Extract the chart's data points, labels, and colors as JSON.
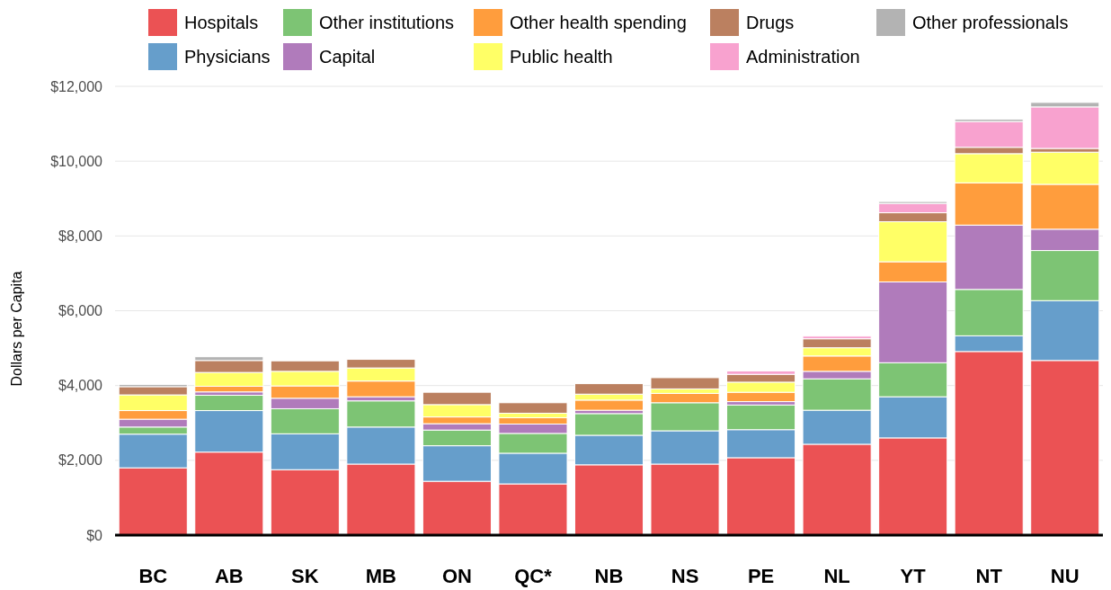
{
  "chart_data": {
    "type": "bar",
    "stacked": true,
    "ylabel": "Dollars per Capita",
    "categories": [
      "BC",
      "AB",
      "SK",
      "MB",
      "ON",
      "QC*",
      "NB",
      "NS",
      "PE",
      "NL",
      "YT",
      "NT",
      "NU"
    ],
    "series": [
      {
        "name": "Hospitals",
        "color": "#eb5254",
        "values": [
          1800,
          2220,
          1750,
          1900,
          1440,
          1370,
          1880,
          1900,
          2070,
          2430,
          2600,
          4910,
          4670
        ]
      },
      {
        "name": "Physicians",
        "color": "#669ecb",
        "values": [
          900,
          1110,
          960,
          990,
          950,
          820,
          790,
          890,
          750,
          910,
          1100,
          420,
          1600
        ]
      },
      {
        "name": "Other institutions",
        "color": "#7dc474",
        "values": [
          190,
          410,
          670,
          700,
          420,
          530,
          580,
          750,
          660,
          840,
          910,
          1240,
          1340
        ]
      },
      {
        "name": "Capital",
        "color": "#b07bbb",
        "values": [
          210,
          90,
          280,
          110,
          170,
          250,
          90,
          0,
          90,
          200,
          2160,
          1720,
          570
        ]
      },
      {
        "name": "Other health spending",
        "color": "#ff9d3d",
        "values": [
          230,
          150,
          330,
          420,
          180,
          170,
          270,
          250,
          250,
          410,
          540,
          1130,
          1200
        ]
      },
      {
        "name": "Public health",
        "color": "#ffff66",
        "values": [
          420,
          370,
          390,
          350,
          330,
          120,
          160,
          120,
          270,
          220,
          1070,
          780,
          860
        ]
      },
      {
        "name": "Drugs",
        "color": "#bb8060",
        "values": [
          220,
          320,
          280,
          230,
          330,
          280,
          280,
          300,
          210,
          240,
          240,
          170,
          100
        ]
      },
      {
        "name": "Administration",
        "color": "#f8a2cf",
        "values": [
          0,
          0,
          0,
          0,
          0,
          0,
          0,
          0,
          90,
          70,
          250,
          690,
          1110
        ]
      },
      {
        "name": "Other professionals",
        "color": "#b3b3b3",
        "values": [
          60,
          100,
          0,
          0,
          0,
          0,
          0,
          0,
          0,
          0,
          50,
          60,
          120
        ]
      }
    ],
    "ylim": [
      0,
      12000
    ],
    "yticks": [
      {
        "value": 0,
        "label": "$0"
      },
      {
        "value": 2000,
        "label": "$2,000"
      },
      {
        "value": 4000,
        "label": "$4,000"
      },
      {
        "value": 6000,
        "label": "$6,000"
      },
      {
        "value": 8000,
        "label": "$8,000"
      },
      {
        "value": 10000,
        "label": "$10,000"
      },
      {
        "value": 12000,
        "label": "$12,000"
      }
    ],
    "grid": "y",
    "legend": "top"
  }
}
